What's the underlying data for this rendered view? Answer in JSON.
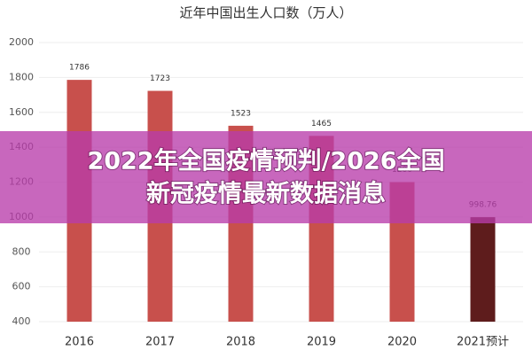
{
  "chart_data": {
    "type": "bar",
    "title": "近年中国出生人口数（万人）",
    "categories": [
      "2016",
      "2017",
      "2018",
      "2019",
      "2020",
      "2021预计"
    ],
    "values": [
      1786,
      1723,
      1523,
      1465,
      1200,
      998.76
    ],
    "colors": [
      "#c8504c",
      "#c8504c",
      "#c8504c",
      "#c8504c",
      "#c8504c",
      "#5e1c1c"
    ],
    "ylim": [
      400,
      2000
    ],
    "yticks": [
      400,
      600,
      800,
      1000,
      1200,
      1400,
      1600,
      1800,
      2000
    ],
    "grid": true
  },
  "banner": {
    "lines": [
      "2022年全国疫情预判/2026全国",
      "新冠疫情最新数据消息"
    ]
  }
}
